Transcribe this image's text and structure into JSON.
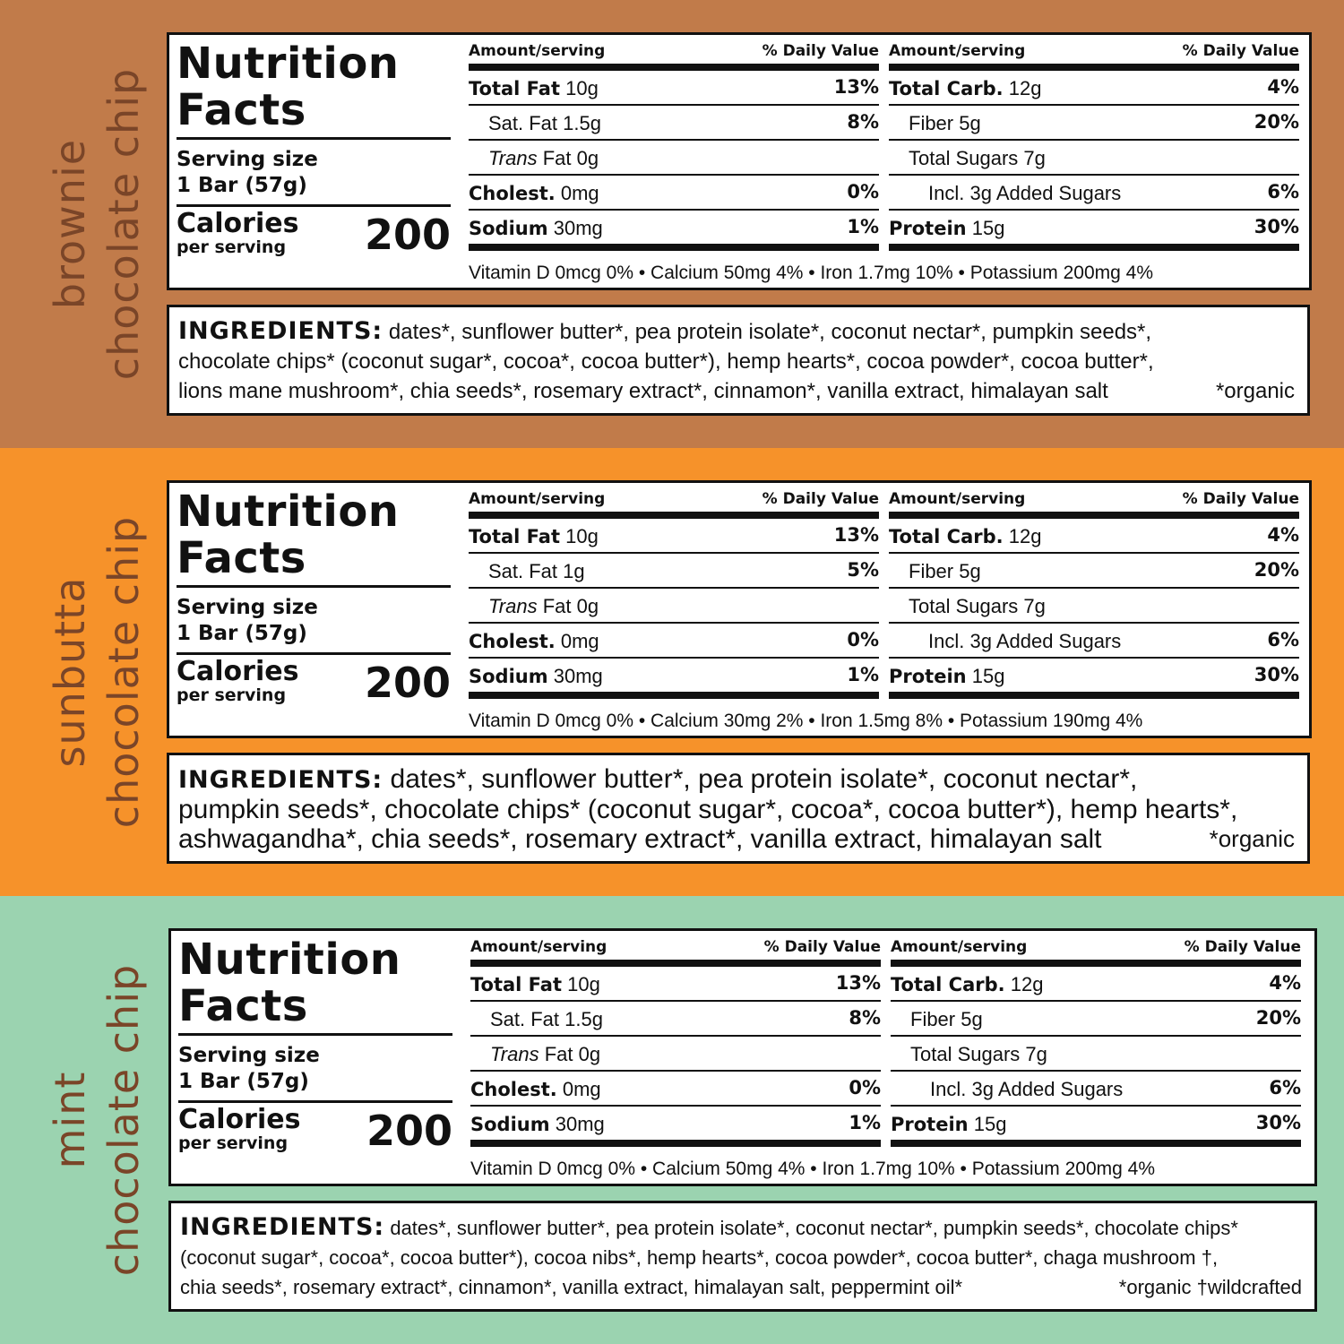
{
  "colors": {
    "brownie": "#C17B4A",
    "sunbutta": "#F6922A",
    "mint": "#9BD3B0",
    "flavor_text": "#7A4528"
  },
  "header": {
    "title": "Nutrition Facts",
    "amount_label": "Amount/serving",
    "dv_label": "% Daily Value"
  },
  "labels": [
    {
      "flavor": [
        "brownie",
        "chocolate chip"
      ],
      "serving_label": "Serving size",
      "serving_size": "1 Bar (57g)",
      "calories_label": "Calories",
      "calories_sub": "per serving",
      "calories": "200",
      "total_fat": {
        "label": "Total Fat",
        "amount": "10g",
        "dv": "13%"
      },
      "sat_fat": {
        "label": "Sat. Fat 1.5g",
        "dv": "8%"
      },
      "trans_fat": {
        "label_italic": "Trans",
        "label_rest": " Fat 0g"
      },
      "cholest": {
        "label": "Cholest.",
        "amount": "0mg",
        "dv": "0%"
      },
      "sodium": {
        "label": "Sodium",
        "amount": "30mg",
        "dv": "1%"
      },
      "total_carb": {
        "label": "Total Carb.",
        "amount": "12g",
        "dv": "4%"
      },
      "fiber": {
        "label": "Fiber 5g",
        "dv": "20%"
      },
      "total_sugars": {
        "label": "Total Sugars 7g"
      },
      "added_sugars": {
        "label": "Incl. 3g Added Sugars",
        "dv": "6%"
      },
      "protein": {
        "label": "Protein",
        "amount": "15g",
        "dv": "30%"
      },
      "vitamins": "Vitamin D 0mcg 0% • Calcium 50mg 4% • Iron 1.7mg 10% • Potassium 200mg 4%",
      "ingredients_key": "INGREDIENTS:",
      "ingredients_lines": [
        "dates*, sunflower butter*, pea protein isolate*, coconut nectar*, pumpkin seeds*,",
        "chocolate chips* (coconut sugar*, cocoa*, cocoa butter*), hemp hearts*, cocoa powder*, cocoa butter*,",
        "lions mane mushroom*, chia seeds*, rosemary extract*, cinnamon*, vanilla extract, himalayan salt"
      ],
      "ingredients_note": "*organic"
    },
    {
      "flavor": [
        "sunbutta",
        "chocolate chip"
      ],
      "serving_label": "Serving size",
      "serving_size": "1 Bar (57g)",
      "calories_label": "Calories",
      "calories_sub": "per serving",
      "calories": "200",
      "total_fat": {
        "label": "Total Fat",
        "amount": "10g",
        "dv": "13%"
      },
      "sat_fat": {
        "label": "Sat. Fat 1g",
        "dv": "5%"
      },
      "trans_fat": {
        "label_italic": "Trans",
        "label_rest": " Fat 0g"
      },
      "cholest": {
        "label": "Cholest.",
        "amount": "0mg",
        "dv": "0%"
      },
      "sodium": {
        "label": "Sodium",
        "amount": "30mg",
        "dv": "1%"
      },
      "total_carb": {
        "label": "Total Carb.",
        "amount": "12g",
        "dv": "4%"
      },
      "fiber": {
        "label": "Fiber 5g",
        "dv": "20%"
      },
      "total_sugars": {
        "label": "Total Sugars 7g"
      },
      "added_sugars": {
        "label": "Incl. 3g Added Sugars",
        "dv": "6%"
      },
      "protein": {
        "label": "Protein",
        "amount": "15g",
        "dv": "30%"
      },
      "vitamins": "Vitamin D 0mcg 0% • Calcium 30mg 2% • Iron 1.5mg 8% • Potassium 190mg 4%",
      "ingredients_key": "INGREDIENTS:",
      "ingredients_lines": [
        "dates*, sunflower butter*, pea protein isolate*, coconut nectar*,",
        "pumpkin seeds*, chocolate chips* (coconut sugar*, cocoa*, cocoa butter*), hemp hearts*,",
        "ashwagandha*, chia seeds*, rosemary extract*, vanilla extract, himalayan salt"
      ],
      "ingredients_note": "*organic"
    },
    {
      "flavor": [
        "mint",
        "chocolate chip"
      ],
      "serving_label": "Serving size",
      "serving_size": "1 Bar (57g)",
      "calories_label": "Calories",
      "calories_sub": "per serving",
      "calories": "200",
      "total_fat": {
        "label": "Total Fat",
        "amount": "10g",
        "dv": "13%"
      },
      "sat_fat": {
        "label": "Sat. Fat 1.5g",
        "dv": "8%"
      },
      "trans_fat": {
        "label_italic": "Trans",
        "label_rest": " Fat 0g"
      },
      "cholest": {
        "label": "Cholest.",
        "amount": "0mg",
        "dv": "0%"
      },
      "sodium": {
        "label": "Sodium",
        "amount": "30mg",
        "dv": "1%"
      },
      "total_carb": {
        "label": "Total Carb.",
        "amount": "12g",
        "dv": "4%"
      },
      "fiber": {
        "label": "Fiber 5g",
        "dv": "20%"
      },
      "total_sugars": {
        "label": "Total Sugars 7g"
      },
      "added_sugars": {
        "label": "Incl. 3g Added Sugars",
        "dv": "6%"
      },
      "protein": {
        "label": "Protein",
        "amount": "15g",
        "dv": "30%"
      },
      "vitamins": "Vitamin D 0mcg 0% • Calcium 50mg 4% • Iron 1.7mg 10% • Potassium 200mg 4%",
      "ingredients_key": "INGREDIENTS:",
      "ingredients_lines": [
        "dates*, sunflower butter*, pea protein isolate*, coconut nectar*, pumpkin seeds*, chocolate chips*",
        "(coconut sugar*, cocoa*, cocoa butter*), cocoa nibs*, hemp hearts*, cocoa powder*, cocoa butter*, chaga mushroom †,",
        "chia seeds*, rosemary extract*, cinnamon*, vanilla extract, himalayan salt, peppermint oil*"
      ],
      "ingredients_note": "*organic   †wildcrafted"
    }
  ]
}
